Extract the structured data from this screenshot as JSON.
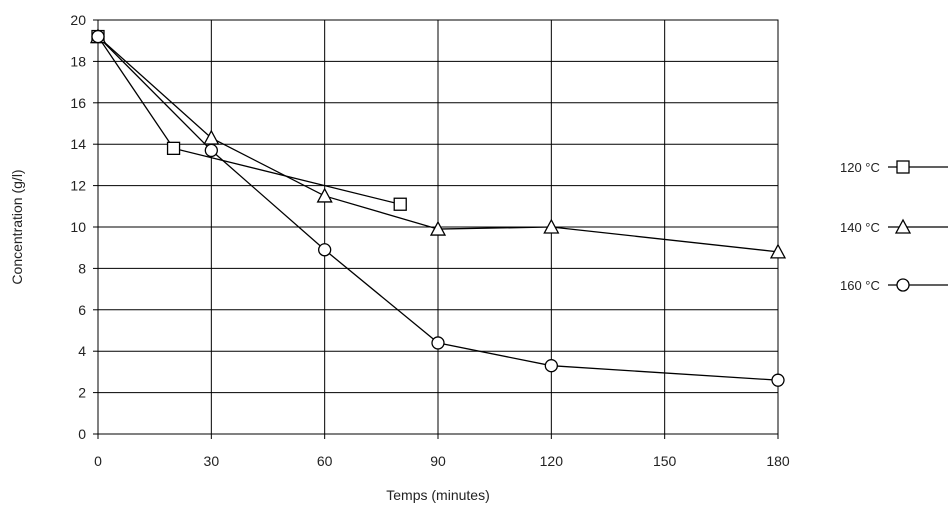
{
  "chart_data": {
    "type": "line",
    "title": "",
    "xlabel": "Temps (minutes)",
    "ylabel": "Concentration (g/l)",
    "xlim": [
      0,
      180
    ],
    "ylim": [
      0,
      20
    ],
    "x_ticks": [
      0,
      30,
      60,
      90,
      120,
      150,
      180
    ],
    "y_ticks": [
      0,
      2,
      4,
      6,
      8,
      10,
      12,
      14,
      16,
      18,
      20
    ],
    "grid": true,
    "legend_position": "right",
    "series": [
      {
        "name": "120 °C",
        "marker": "square",
        "x": [
          0,
          20,
          80
        ],
        "y": [
          19.2,
          13.8,
          11.1
        ]
      },
      {
        "name": "140 °C",
        "marker": "triangle",
        "x": [
          0,
          30,
          60,
          90,
          120,
          180
        ],
        "y": [
          19.2,
          14.3,
          11.5,
          9.9,
          10.0,
          8.8
        ]
      },
      {
        "name": "160 °C",
        "marker": "circle",
        "x": [
          0,
          30,
          60,
          90,
          120,
          180
        ],
        "y": [
          19.2,
          13.7,
          8.9,
          4.4,
          3.3,
          2.6
        ]
      }
    ],
    "colors": {
      "line": "#000000",
      "grid": "#000000",
      "marker_fill": "#ffffff"
    }
  }
}
